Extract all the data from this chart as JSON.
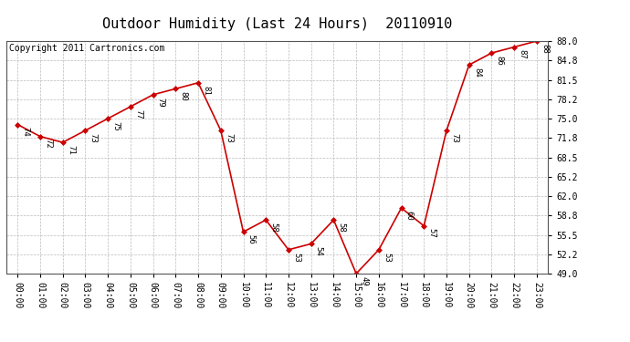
{
  "title": "Outdoor Humidity (Last 24 Hours)  20110910",
  "copyright": "Copyright 2011 Cartronics.com",
  "x_labels": [
    "00:00",
    "01:00",
    "02:00",
    "03:00",
    "04:00",
    "05:00",
    "06:00",
    "07:00",
    "08:00",
    "09:00",
    "10:00",
    "11:00",
    "12:00",
    "13:00",
    "14:00",
    "15:00",
    "16:00",
    "17:00",
    "18:00",
    "19:00",
    "20:00",
    "21:00",
    "22:00",
    "23:00"
  ],
  "y_values": [
    74,
    72,
    71,
    73,
    75,
    77,
    79,
    80,
    81,
    73,
    56,
    58,
    53,
    54,
    58,
    49,
    53,
    60,
    57,
    73,
    84,
    86,
    87,
    88
  ],
  "y_labels": [
    "49.0",
    "52.2",
    "55.5",
    "58.8",
    "62.0",
    "65.2",
    "68.5",
    "71.8",
    "75.0",
    "78.2",
    "81.5",
    "84.8",
    "88.0"
  ],
  "y_ticks": [
    49.0,
    52.2,
    55.5,
    58.8,
    62.0,
    65.2,
    68.5,
    71.8,
    75.0,
    78.2,
    81.5,
    84.8,
    88.0
  ],
  "ylim": [
    49.0,
    88.0
  ],
  "line_color": "#cc0000",
  "marker_color": "#cc0000",
  "background_color": "#ffffff",
  "grid_color": "#bbbbbb",
  "title_fontsize": 11,
  "copyright_fontsize": 7,
  "label_fontsize": 6.5,
  "tick_fontsize": 7
}
